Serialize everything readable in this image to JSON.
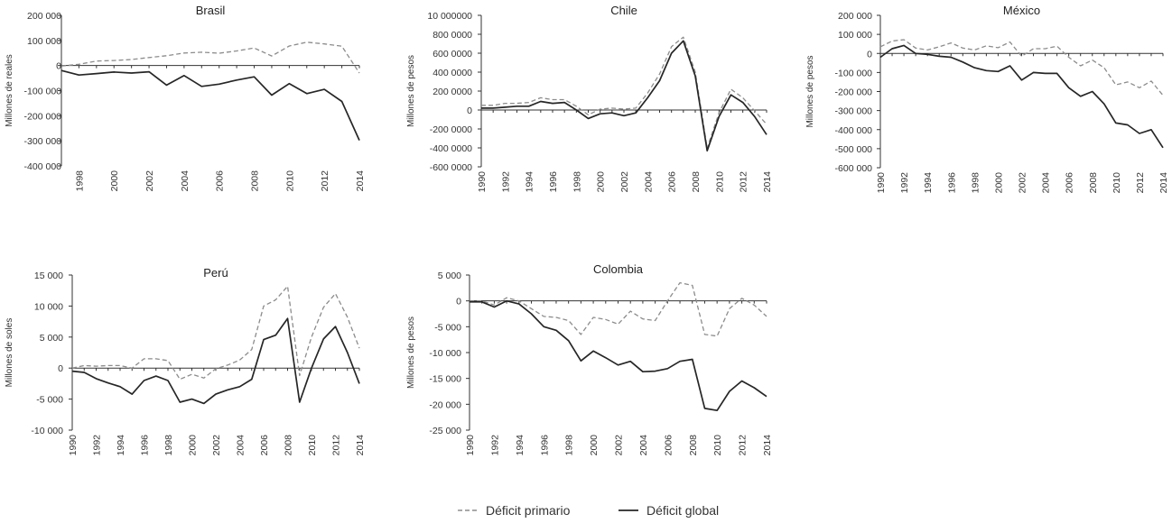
{
  "colors": {
    "primary": "#8c8c8c",
    "global": "#262626",
    "axis": "#333333"
  },
  "legend": [
    {
      "key": "primary",
      "label": "Déficit primario"
    },
    {
      "key": "global",
      "label": "Déficit global"
    }
  ],
  "chart_data": [
    {
      "type": "line",
      "title": "Brasil",
      "ylabel": "Millones de reales",
      "ylim": [
        -400000,
        200000
      ],
      "yticks": [
        200000,
        100000,
        0,
        -100000,
        -200000,
        -300000,
        -400000
      ],
      "ytick_labels": [
        "200 000",
        "100 000",
        "0",
        "-100 000",
        "-200 000",
        "-300 000",
        "-400 000"
      ],
      "xlim": [
        1997,
        2014
      ],
      "xticks": [
        1998,
        2000,
        2002,
        2004,
        2006,
        2008,
        2010,
        2012,
        2014
      ],
      "xtick_labels": [
        "1998",
        "2000",
        "2002",
        "2004",
        "2006",
        "2008",
        "2010",
        "2012",
        "2014"
      ],
      "x": [
        1997,
        1998,
        1999,
        2000,
        2001,
        2002,
        2003,
        2004,
        2005,
        2006,
        2007,
        2008,
        2009,
        2010,
        2011,
        2012,
        2013,
        2014
      ],
      "series": [
        {
          "key": "primary",
          "name": "Déficit primario",
          "values": [
            -2000,
            5000,
            18000,
            20000,
            24000,
            32000,
            39000,
            50000,
            53000,
            49000,
            58000,
            70000,
            38000,
            78000,
            93000,
            86000,
            77000,
            -30000
          ]
        },
        {
          "key": "global",
          "name": "Déficit global",
          "values": [
            -20000,
            -38000,
            -32000,
            -26000,
            -30000,
            -25000,
            -78000,
            -40000,
            -83000,
            -74000,
            -58000,
            -45000,
            -118000,
            -72000,
            -112000,
            -95000,
            -143000,
            -298000
          ]
        }
      ]
    },
    {
      "type": "line",
      "title": "Chile",
      "ylabel": "Millones de pesos",
      "ylim": [
        -6000000,
        10000000
      ],
      "yticks": [
        10000000,
        8000000,
        6000000,
        4000000,
        2000000,
        0,
        -2000000,
        -4000000,
        -6000000
      ],
      "ytick_labels": [
        "10 000000",
        "800 0000",
        "600 0000",
        "400 0000",
        "200 0000",
        "0",
        "-200 0000",
        "-400 0000",
        "-600 0000"
      ],
      "xlim": [
        1990,
        2014
      ],
      "xticks": [
        1990,
        1992,
        1994,
        1996,
        1998,
        2000,
        2002,
        2004,
        2006,
        2008,
        2010,
        2012,
        2014
      ],
      "xtick_labels": [
        "1990",
        "1992",
        "1994",
        "1996",
        "1998",
        "2000",
        "2002",
        "2004",
        "2006",
        "2008",
        "2010",
        "2012",
        "2014"
      ],
      "x": [
        1990,
        1991,
        1992,
        1993,
        1994,
        1995,
        1996,
        1997,
        1998,
        1999,
        2000,
        2001,
        2002,
        2003,
        2004,
        2005,
        2006,
        2007,
        2008,
        2009,
        2010,
        2011,
        2012,
        2013,
        2014
      ],
      "series": [
        {
          "key": "primary",
          "name": "Déficit primario",
          "values": [
            500000,
            500000,
            700000,
            700000,
            800000,
            1300000,
            1100000,
            1100000,
            400000,
            -500000,
            100000,
            200000,
            100000,
            200000,
            1800000,
            3800000,
            6700000,
            7700000,
            4000000,
            -4000000,
            -300000,
            2200000,
            1300000,
            -100000,
            -1500000
          ]
        },
        {
          "key": "global",
          "name": "Déficit global",
          "values": [
            200000,
            200000,
            300000,
            400000,
            400000,
            900000,
            700000,
            800000,
            0,
            -900000,
            -400000,
            -300000,
            -600000,
            -300000,
            1300000,
            3100000,
            6000000,
            7300000,
            3600000,
            -4300000,
            -700000,
            1600000,
            800000,
            -700000,
            -2600000
          ]
        }
      ]
    },
    {
      "type": "line",
      "title": "México",
      "ylabel": "Millones de pesos",
      "ylim": [
        -600000,
        200000
      ],
      "yticks": [
        200000,
        100000,
        0,
        -100000,
        -200000,
        -300000,
        -400000,
        -500000,
        -600000
      ],
      "ytick_labels": [
        "200 000",
        "100 000",
        "0",
        "-100 000",
        "-200 000",
        "-300 000",
        "-400 000",
        "-500 000",
        "-600 000"
      ],
      "xlim": [
        1990,
        2014
      ],
      "xticks": [
        1990,
        1992,
        1994,
        1996,
        1998,
        2000,
        2002,
        2004,
        2006,
        2008,
        2010,
        2012,
        2014
      ],
      "xtick_labels": [
        "1990",
        "1992",
        "1994",
        "1996",
        "1998",
        "2000",
        "2002",
        "2004",
        "2006",
        "2008",
        "2010",
        "2012",
        "2014"
      ],
      "x": [
        1990,
        1991,
        1992,
        1993,
        1994,
        1995,
        1996,
        1997,
        1998,
        1999,
        2000,
        2001,
        2002,
        2003,
        2004,
        2005,
        2006,
        2007,
        2008,
        2009,
        2010,
        2011,
        2012,
        2013,
        2014
      ],
      "series": [
        {
          "key": "primary",
          "name": "Déficit primario",
          "values": [
            35000,
            65000,
            72000,
            28000,
            18000,
            35000,
            55000,
            28000,
            18000,
            40000,
            30000,
            60000,
            -15000,
            25000,
            25000,
            38000,
            -20000,
            -65000,
            -35000,
            -75000,
            -165000,
            -150000,
            -180000,
            -145000,
            -220000
          ]
        },
        {
          "key": "global",
          "name": "Déficit global",
          "values": [
            -20000,
            25000,
            42000,
            0,
            -5000,
            -15000,
            -20000,
            -45000,
            -75000,
            -90000,
            -95000,
            -65000,
            -140000,
            -100000,
            -105000,
            -105000,
            -180000,
            -225000,
            -200000,
            -265000,
            -365000,
            -375000,
            -420000,
            -400000,
            -495000
          ]
        }
      ]
    },
    {
      "type": "line",
      "title": "Perú",
      "ylabel": "Millones de soles",
      "ylim": [
        -10000,
        15000
      ],
      "yticks": [
        15000,
        10000,
        5000,
        0,
        -5000,
        -10000
      ],
      "ytick_labels": [
        "15 000",
        "10 000",
        "5 000",
        "0",
        "-5 000",
        "-10 000"
      ],
      "xlim": [
        1990,
        2014
      ],
      "xticks": [
        1990,
        1992,
        1994,
        1996,
        1998,
        2000,
        2002,
        2004,
        2006,
        2008,
        2010,
        2012,
        2014
      ],
      "xtick_labels": [
        "1990",
        "1992",
        "1994",
        "1996",
        "1998",
        "2000",
        "2002",
        "2004",
        "2006",
        "2008",
        "2010",
        "2012",
        "2014"
      ],
      "x": [
        1990,
        1991,
        1992,
        1993,
        1994,
        1995,
        1996,
        1997,
        1998,
        1999,
        2000,
        2001,
        2002,
        2003,
        2004,
        2005,
        2006,
        2007,
        2008,
        2009,
        2010,
        2011,
        2012,
        2013,
        2014
      ],
      "series": [
        {
          "key": "primary",
          "name": "Déficit primario",
          "values": [
            0,
            400,
            300,
            400,
            400,
            0,
            1500,
            1500,
            1200,
            -1800,
            -1000,
            -1600,
            -100,
            500,
            1300,
            3000,
            10000,
            11000,
            13200,
            -1200,
            5000,
            9800,
            12000,
            8200,
            3200
          ]
        },
        {
          "key": "global",
          "name": "Déficit global",
          "values": [
            -500,
            -700,
            -1700,
            -2400,
            -3000,
            -4200,
            -2000,
            -1300,
            -2000,
            -5500,
            -5000,
            -5700,
            -4200,
            -3500,
            -3000,
            -1800,
            4600,
            5300,
            8000,
            -5500,
            0,
            4700,
            6700,
            2500,
            -2500
          ]
        }
      ]
    },
    {
      "type": "line",
      "title": "Colombia",
      "ylabel": "Millones de pesos",
      "ylim": [
        -25000,
        5000
      ],
      "yticks": [
        5000,
        0,
        -5000,
        -10000,
        -15000,
        -20000,
        -25000
      ],
      "ytick_labels": [
        "5 000",
        "0",
        "-5 000",
        "-10 000",
        "-15 000",
        "-20 000",
        "-25 000"
      ],
      "xlim": [
        1990,
        2014
      ],
      "xticks": [
        1990,
        1992,
        1994,
        1996,
        1998,
        2000,
        2002,
        2004,
        2006,
        2008,
        2010,
        2012,
        2014
      ],
      "xtick_labels": [
        "1990",
        "1992",
        "1994",
        "1996",
        "1998",
        "2000",
        "2002",
        "2004",
        "2006",
        "2008",
        "2010",
        "2012",
        "2014"
      ],
      "x": [
        1990,
        1991,
        1992,
        1993,
        1994,
        1995,
        1996,
        1997,
        1998,
        1999,
        2000,
        2001,
        2002,
        2003,
        2004,
        2005,
        2006,
        2007,
        2008,
        2009,
        2010,
        2011,
        2012,
        2013,
        2014
      ],
      "series": [
        {
          "key": "primary",
          "name": "Déficit primario",
          "values": [
            -100,
            0,
            -800,
            600,
            0,
            -1500,
            -3000,
            -3200,
            -3800,
            -6500,
            -3200,
            -3600,
            -4500,
            -2000,
            -3500,
            -3800,
            0,
            3500,
            3000,
            -6500,
            -6800,
            -1500,
            500,
            -800,
            -3000
          ]
        },
        {
          "key": "global",
          "name": "Déficit global",
          "values": [
            -200,
            -200,
            -1200,
            0,
            -600,
            -2500,
            -5000,
            -5700,
            -7700,
            -11600,
            -9700,
            -11000,
            -12400,
            -11700,
            -13700,
            -13600,
            -13100,
            -11700,
            -11300,
            -20800,
            -21200,
            -17500,
            -15500,
            -16800,
            -18500
          ]
        }
      ]
    }
  ]
}
